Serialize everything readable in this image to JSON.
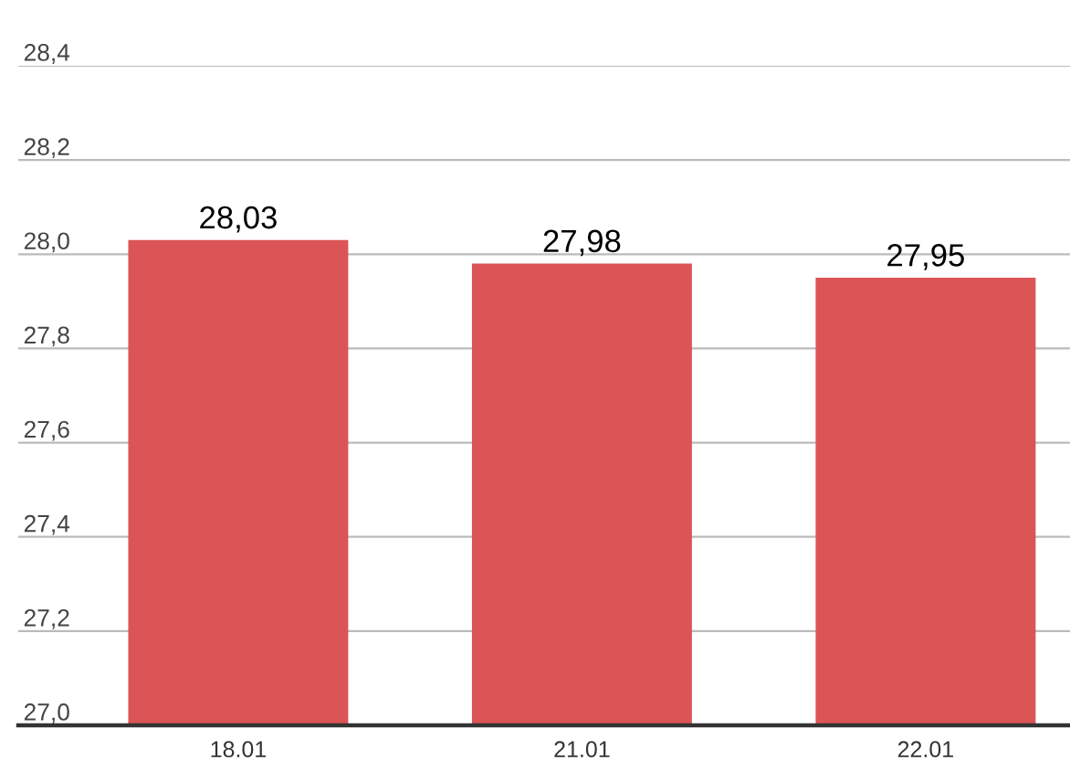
{
  "chart_data": {
    "type": "bar",
    "categories": [
      "18.01",
      "21.01",
      "22.01"
    ],
    "values": [
      28.03,
      27.98,
      27.95
    ],
    "value_labels": [
      "28,03",
      "27,98",
      "27,95"
    ],
    "color": "#db5456",
    "ylim": [
      27.0,
      28.4
    ],
    "yticks": [
      {
        "value": 27.0,
        "label": "27,0"
      },
      {
        "value": 27.2,
        "label": "27,2"
      },
      {
        "value": 27.4,
        "label": "27,4"
      },
      {
        "value": 27.6,
        "label": "27,6"
      },
      {
        "value": 27.8,
        "label": "27,8"
      },
      {
        "value": 28.0,
        "label": "28,0"
      },
      {
        "value": 28.2,
        "label": "28,2"
      },
      {
        "value": 28.4,
        "label": "28,4"
      }
    ],
    "grid": "y",
    "legend": false
  }
}
